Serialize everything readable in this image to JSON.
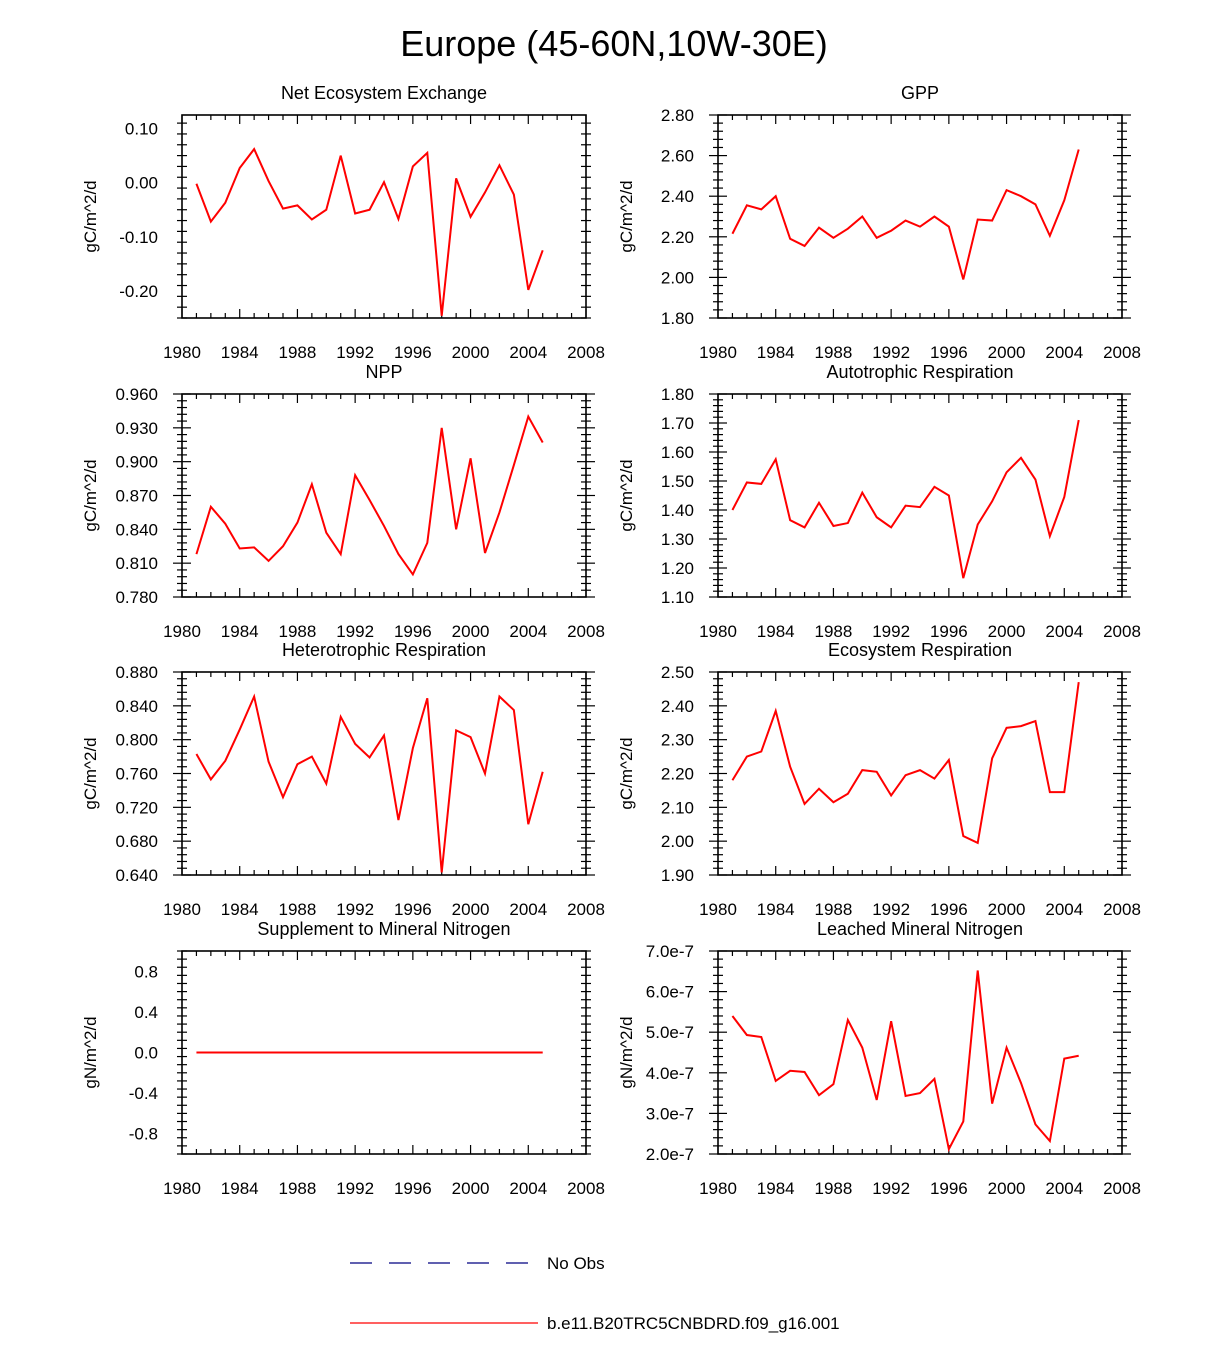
{
  "figure": {
    "title": "Europe (45-60N,10W-30E)",
    "series_color": "#ff0000",
    "obs_color": "#000080"
  },
  "legend": {
    "obs_label": "No Obs",
    "model_label": "b.e11.B20TRC5CNBDRD.f09_g16.001"
  },
  "chart_data": [
    {
      "type": "line",
      "title": "Net Ecosystem Exchange",
      "xlabel": "",
      "ylabel": "gC/m^2/d",
      "xlim": [
        1980,
        2008
      ],
      "ylim": [
        -0.25,
        0.125
      ],
      "xticks": [
        "1980",
        "1984",
        "1988",
        "1992",
        "1996",
        "2000",
        "2004",
        "2008"
      ],
      "yticks": [
        "0.10",
        "0.00",
        "-0.10",
        "-0.20"
      ],
      "x": [
        1981,
        1982,
        1983,
        1984,
        1985,
        1986,
        1987,
        1988,
        1989,
        1990,
        1991,
        1992,
        1993,
        1994,
        1995,
        1996,
        1997,
        1998,
        1999,
        2000,
        2001,
        2002,
        2003,
        2004,
        2005
      ],
      "series": [
        {
          "name": "b.e11.B20TRC5CNBDRD.f09_g16.001",
          "values": [
            -0.002,
            -0.072,
            -0.037,
            0.027,
            0.062,
            0.003,
            -0.048,
            -0.042,
            -0.068,
            -0.05,
            0.05,
            -0.057,
            -0.05,
            0.001,
            -0.067,
            0.03,
            0.055,
            -0.246,
            0.008,
            -0.063,
            -0.018,
            0.032,
            -0.022,
            -0.198,
            -0.125
          ]
        }
      ]
    },
    {
      "type": "line",
      "title": "GPP",
      "xlabel": "",
      "ylabel": "gC/m^2/d",
      "xlim": [
        1980,
        2008
      ],
      "ylim": [
        1.8,
        2.8
      ],
      "xticks": [
        "1980",
        "1984",
        "1988",
        "1992",
        "1996",
        "2000",
        "2004",
        "2008"
      ],
      "yticks": [
        "2.80",
        "2.60",
        "2.40",
        "2.20",
        "2.00",
        "1.80"
      ],
      "x": [
        1981,
        1982,
        1983,
        1984,
        1985,
        1986,
        1987,
        1988,
        1989,
        1990,
        1991,
        1992,
        1993,
        1994,
        1995,
        1996,
        1997,
        1998,
        1999,
        2000,
        2001,
        2002,
        2003,
        2004,
        2005
      ],
      "series": [
        {
          "name": "b.e11.B20TRC5CNBDRD.f09_g16.001",
          "values": [
            2.215,
            2.355,
            2.335,
            2.4,
            2.19,
            2.155,
            2.245,
            2.195,
            2.24,
            2.3,
            2.195,
            2.23,
            2.28,
            2.25,
            2.3,
            2.25,
            1.99,
            2.285,
            2.28,
            2.43,
            2.4,
            2.36,
            2.205,
            2.38,
            2.63
          ]
        }
      ]
    },
    {
      "type": "line",
      "title": "NPP",
      "xlabel": "",
      "ylabel": "gC/m^2/d",
      "xlim": [
        1980,
        2008
      ],
      "ylim": [
        0.78,
        0.96
      ],
      "xticks": [
        "1980",
        "1984",
        "1988",
        "1992",
        "1996",
        "2000",
        "2004",
        "2008"
      ],
      "yticks": [
        "0.960",
        "0.930",
        "0.900",
        "0.870",
        "0.840",
        "0.810",
        "0.780"
      ],
      "x": [
        1981,
        1982,
        1983,
        1984,
        1985,
        1986,
        1987,
        1988,
        1989,
        1990,
        1991,
        1992,
        1993,
        1994,
        1995,
        1996,
        1997,
        1998,
        1999,
        2000,
        2001,
        2002,
        2003,
        2004,
        2005
      ],
      "series": [
        {
          "name": "b.e11.B20TRC5CNBDRD.f09_g16.001",
          "values": [
            0.818,
            0.86,
            0.845,
            0.823,
            0.824,
            0.812,
            0.825,
            0.846,
            0.88,
            0.837,
            0.818,
            0.888,
            0.866,
            0.843,
            0.818,
            0.8,
            0.828,
            0.93,
            0.84,
            0.903,
            0.819,
            0.855,
            0.897,
            0.94,
            0.917
          ]
        }
      ]
    },
    {
      "type": "line",
      "title": "Autotrophic Respiration",
      "xlabel": "",
      "ylabel": "gC/m^2/d",
      "xlim": [
        1980,
        2008
      ],
      "ylim": [
        1.1,
        1.8
      ],
      "xticks": [
        "1980",
        "1984",
        "1988",
        "1992",
        "1996",
        "2000",
        "2004",
        "2008"
      ],
      "yticks": [
        "1.80",
        "1.70",
        "1.60",
        "1.50",
        "1.40",
        "1.30",
        "1.20",
        "1.10"
      ],
      "x": [
        1981,
        1982,
        1983,
        1984,
        1985,
        1986,
        1987,
        1988,
        1989,
        1990,
        1991,
        1992,
        1993,
        1994,
        1995,
        1996,
        1997,
        1998,
        1999,
        2000,
        2001,
        2002,
        2003,
        2004,
        2005
      ],
      "series": [
        {
          "name": "b.e11.B20TRC5CNBDRD.f09_g16.001",
          "values": [
            1.4,
            1.495,
            1.49,
            1.575,
            1.365,
            1.34,
            1.425,
            1.345,
            1.355,
            1.46,
            1.375,
            1.34,
            1.415,
            1.41,
            1.48,
            1.45,
            1.165,
            1.35,
            1.43,
            1.53,
            1.58,
            1.505,
            1.31,
            1.445,
            1.71
          ]
        }
      ]
    },
    {
      "type": "line",
      "title": "Heterotrophic Respiration",
      "xlabel": "",
      "ylabel": "gC/m^2/d",
      "xlim": [
        1980,
        2008
      ],
      "ylim": [
        0.64,
        0.88
      ],
      "xticks": [
        "1980",
        "1984",
        "1988",
        "1992",
        "1996",
        "2000",
        "2004",
        "2008"
      ],
      "yticks": [
        "0.880",
        "0.840",
        "0.800",
        "0.760",
        "0.720",
        "0.680",
        "0.640"
      ],
      "x": [
        1981,
        1982,
        1983,
        1984,
        1985,
        1986,
        1987,
        1988,
        1989,
        1990,
        1991,
        1992,
        1993,
        1994,
        1995,
        1996,
        1997,
        1998,
        1999,
        2000,
        2001,
        2002,
        2003,
        2004,
        2005
      ],
      "series": [
        {
          "name": "b.e11.B20TRC5CNBDRD.f09_g16.001",
          "values": [
            0.783,
            0.753,
            0.775,
            0.812,
            0.851,
            0.774,
            0.732,
            0.771,
            0.78,
            0.748,
            0.827,
            0.795,
            0.779,
            0.805,
            0.705,
            0.79,
            0.849,
            0.643,
            0.811,
            0.803,
            0.76,
            0.851,
            0.835,
            0.7,
            0.762
          ]
        }
      ]
    },
    {
      "type": "line",
      "title": "Ecosystem Respiration",
      "xlabel": "",
      "ylabel": "gC/m^2/d",
      "xlim": [
        1980,
        2008
      ],
      "ylim": [
        1.9,
        2.5
      ],
      "xticks": [
        "1980",
        "1984",
        "1988",
        "1992",
        "1996",
        "2000",
        "2004",
        "2008"
      ],
      "yticks": [
        "2.50",
        "2.40",
        "2.30",
        "2.20",
        "2.10",
        "2.00",
        "1.90"
      ],
      "x": [
        1981,
        1982,
        1983,
        1984,
        1985,
        1986,
        1987,
        1988,
        1989,
        1990,
        1991,
        1992,
        1993,
        1994,
        1995,
        1996,
        1997,
        1998,
        1999,
        2000,
        2001,
        2002,
        2003,
        2004,
        2005
      ],
      "series": [
        {
          "name": "b.e11.B20TRC5CNBDRD.f09_g16.001",
          "values": [
            2.18,
            2.25,
            2.265,
            2.385,
            2.22,
            2.11,
            2.155,
            2.115,
            2.14,
            2.21,
            2.205,
            2.135,
            2.195,
            2.21,
            2.185,
            2.24,
            2.015,
            1.995,
            2.245,
            2.335,
            2.34,
            2.355,
            2.145,
            2.145,
            2.47
          ]
        }
      ]
    },
    {
      "type": "line",
      "title": "Supplement to Mineral Nitrogen",
      "xlabel": "",
      "ylabel": "gN/m^2/d",
      "xlim": [
        1980,
        2008
      ],
      "ylim": [
        -1.0,
        1.0
      ],
      "xticks": [
        "1980",
        "1984",
        "1988",
        "1992",
        "1996",
        "2000",
        "2004",
        "2008"
      ],
      "yticks": [
        "0.8",
        "0.4",
        "0.0",
        "-0.4",
        "-0.8"
      ],
      "x": [
        1981,
        1982,
        1983,
        1984,
        1985,
        1986,
        1987,
        1988,
        1989,
        1990,
        1991,
        1992,
        1993,
        1994,
        1995,
        1996,
        1997,
        1998,
        1999,
        2000,
        2001,
        2002,
        2003,
        2004,
        2005
      ],
      "series": [
        {
          "name": "b.e11.B20TRC5CNBDRD.f09_g16.001",
          "values": [
            0,
            0,
            0,
            0,
            0,
            0,
            0,
            0,
            0,
            0,
            0,
            0,
            0,
            0,
            0,
            0,
            0,
            0,
            0,
            0,
            0,
            0,
            0,
            0,
            0
          ]
        }
      ]
    },
    {
      "type": "line",
      "title": "Leached Mineral Nitrogen",
      "xlabel": "",
      "ylabel": "gN/m^2/d",
      "xlim": [
        1980,
        2008
      ],
      "ylim": [
        2e-07,
        7e-07
      ],
      "xticks": [
        "1980",
        "1984",
        "1988",
        "1992",
        "1996",
        "2000",
        "2004",
        "2008"
      ],
      "yticks": [
        "7.0e-7",
        "6.0e-7",
        "5.0e-7",
        "4.0e-7",
        "3.0e-7",
        "2.0e-7"
      ],
      "x": [
        1981,
        1982,
        1983,
        1984,
        1985,
        1986,
        1987,
        1988,
        1989,
        1990,
        1991,
        1992,
        1993,
        1994,
        1995,
        1996,
        1997,
        1998,
        1999,
        2000,
        2001,
        2002,
        2003,
        2004,
        2005
      ],
      "series": [
        {
          "name": "b.e11.B20TRC5CNBDRD.f09_g16.001",
          "values": [
            5.4e-07,
            4.93e-07,
            4.88e-07,
            3.8e-07,
            4.05e-07,
            4.02e-07,
            3.45e-07,
            3.72e-07,
            5.3e-07,
            4.62e-07,
            3.33e-07,
            5.27e-07,
            3.43e-07,
            3.5e-07,
            3.85e-07,
            2.12e-07,
            2.8e-07,
            6.52e-07,
            3.24e-07,
            4.62e-07,
            3.75e-07,
            2.73e-07,
            2.32e-07,
            4.35e-07,
            4.42e-07
          ]
        }
      ]
    }
  ]
}
